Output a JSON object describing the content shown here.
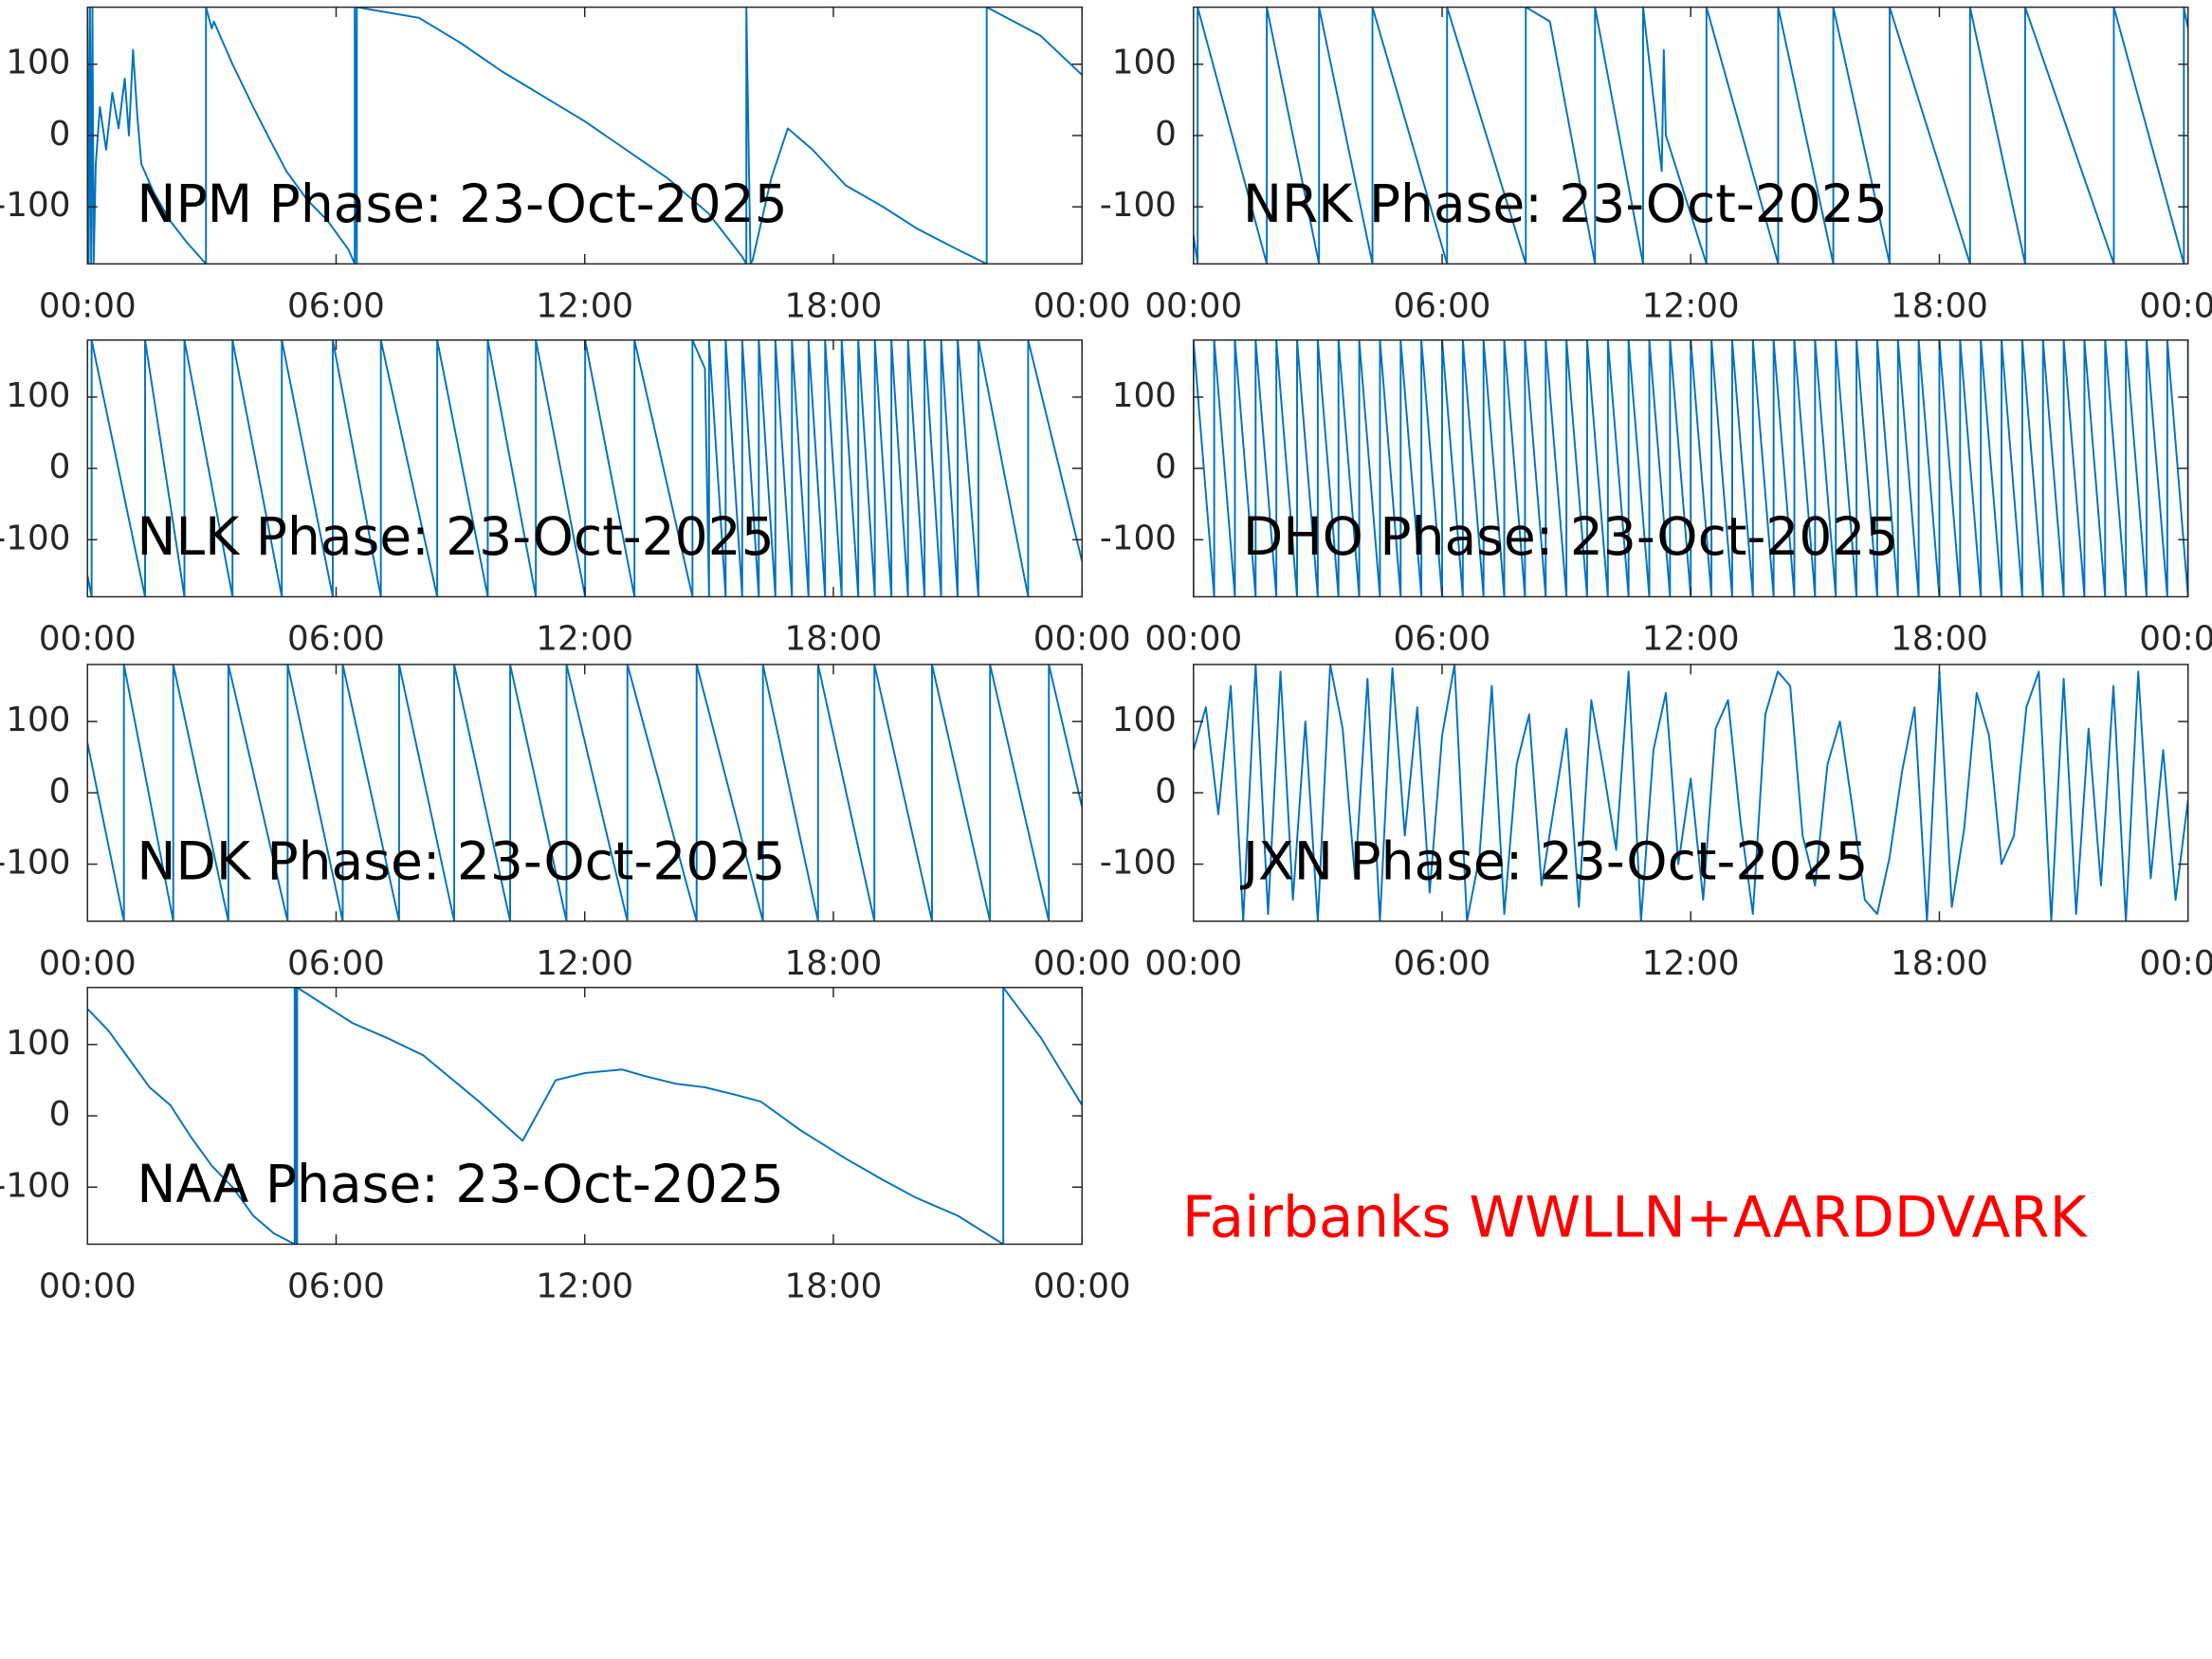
{
  "chart_data": [
    {
      "type": "line",
      "title": "NPM Phase: 23-Oct-2025",
      "color": "#0072bd",
      "x": [
        0,
        0.03,
        0.06,
        0.09,
        0.12,
        0.15,
        0.2,
        0.3,
        0.45,
        0.6,
        0.75,
        0.9,
        1.0,
        1.1,
        1.2,
        1.3,
        1.6,
        2.0,
        2.4,
        2.86,
        2.86,
        3.0,
        3.05,
        3.5,
        4.0,
        4.35,
        4.8,
        5.3,
        5.8,
        6.3,
        6.45,
        6.45,
        6.5,
        6.5,
        7.0,
        8.0,
        9.0,
        10.0,
        11.0,
        12.0,
        13.0,
        14.0,
        15.0,
        15.8,
        15.9,
        15.9,
        16.0,
        16.05,
        16.5,
        16.9,
        17.5,
        18.3,
        19.2,
        20.0,
        21.0,
        21.7,
        21.7,
        23.0,
        24
      ],
      "values": [
        180,
        -180,
        180,
        -180,
        180,
        -180,
        -40,
        40,
        -20,
        60,
        10,
        80,
        0,
        120,
        30,
        -40,
        -80,
        -120,
        -150,
        -180,
        180,
        150,
        160,
        100,
        40,
        0,
        -50,
        -90,
        -120,
        -160,
        -180,
        180,
        -180,
        180,
        175,
        165,
        130,
        90,
        55,
        20,
        -20,
        -60,
        -110,
        -170,
        -180,
        180,
        -180,
        -175,
        -60,
        10,
        -20,
        -70,
        -100,
        -130,
        -160,
        -180,
        180,
        140,
        85
      ],
      "xlim": [
        0,
        24
      ],
      "xticks": [
        {
          "value": 0,
          "label": "00:00"
        },
        {
          "value": 6,
          "label": "06:00"
        },
        {
          "value": 12,
          "label": "12:00"
        },
        {
          "value": 18,
          "label": "18:00"
        },
        {
          "value": 24,
          "label": "00:00"
        }
      ],
      "ylim": [
        -180,
        180
      ],
      "yticks": [
        -100,
        0,
        100
      ]
    },
    {
      "type": "line",
      "title": "NRK Phase: 23-Oct-2025",
      "color": "#0072bd",
      "x": [
        0,
        0.1,
        0.1,
        1.77,
        1.77,
        3.03,
        3.03,
        4.32,
        4.32,
        6.12,
        6.12,
        8.02,
        8.02,
        8.6,
        9.69,
        9.69,
        10.85,
        10.85,
        11.3,
        11.35,
        11.4,
        12.38,
        12.38,
        14.11,
        14.11,
        15.44,
        15.44,
        16.8,
        16.8,
        18.74,
        18.74,
        20.07,
        20.07,
        22.21,
        22.21,
        23.9,
        23.9,
        24
      ],
      "values": [
        -140,
        -180,
        180,
        -180,
        180,
        -180,
        180,
        -180,
        180,
        -180,
        180,
        -180,
        180,
        160,
        -180,
        180,
        -180,
        180,
        -50,
        120,
        0,
        -180,
        180,
        -180,
        180,
        -180,
        180,
        -180,
        180,
        -180,
        180,
        -180,
        180,
        -180,
        180,
        -180,
        180,
        150
      ],
      "xlim": [
        0,
        24
      ],
      "xticks": [
        {
          "value": 0,
          "label": "00:00"
        },
        {
          "value": 6,
          "label": "06:00"
        },
        {
          "value": 12,
          "label": "12:00"
        },
        {
          "value": 18,
          "label": "18:00"
        },
        {
          "value": 24,
          "label": "00:00"
        }
      ],
      "ylim": [
        -180,
        180
      ],
      "yticks": [
        -100,
        0,
        100
      ]
    },
    {
      "type": "line",
      "title": "NLK Phase: 23-Oct-2025",
      "color": "#0072bd",
      "x": [
        0,
        0.1,
        0.1,
        1.39,
        1.39,
        2.34,
        2.34,
        3.5,
        3.5,
        4.69,
        4.69,
        5.92,
        5.92,
        7.08,
        7.08,
        8.44,
        8.44,
        9.66,
        9.66,
        10.82,
        10.82,
        12.01,
        12.01,
        13.2,
        13.2,
        14.6,
        14.6,
        14.9,
        15.0,
        15.0,
        15.4,
        15.4,
        15.8,
        15.8,
        16.2,
        16.2,
        16.6,
        16.6,
        17.0,
        17.0,
        17.4,
        17.4,
        17.8,
        17.8,
        18.2,
        18.2,
        18.6,
        18.6,
        19.0,
        19.0,
        19.4,
        19.4,
        19.8,
        19.8,
        20.2,
        20.2,
        20.6,
        20.6,
        21.0,
        21.0,
        21.5,
        21.5,
        22.7,
        22.7,
        24
      ],
      "values": [
        -150,
        -180,
        180,
        -180,
        180,
        -180,
        180,
        -180,
        180,
        -180,
        180,
        -180,
        180,
        -180,
        180,
        -180,
        180,
        -180,
        180,
        -180,
        180,
        -180,
        180,
        -180,
        180,
        -180,
        180,
        140,
        -180,
        180,
        -180,
        180,
        -180,
        180,
        -180,
        180,
        -180,
        180,
        -180,
        180,
        -180,
        180,
        -180,
        180,
        -180,
        180,
        -180,
        180,
        -180,
        180,
        -180,
        180,
        -180,
        180,
        -180,
        180,
        -180,
        180,
        -180,
        180,
        -180,
        180,
        -180,
        180,
        -130
      ],
      "xlim": [
        0,
        24
      ],
      "xticks": [
        {
          "value": 0,
          "label": "00:00"
        },
        {
          "value": 6,
          "label": "06:00"
        },
        {
          "value": 12,
          "label": "12:00"
        },
        {
          "value": 18,
          "label": "18:00"
        },
        {
          "value": 24,
          "label": "00:00"
        }
      ],
      "ylim": [
        -180,
        180
      ],
      "yticks": [
        -100,
        0,
        100
      ]
    },
    {
      "type": "line",
      "title": "DHO Phase: 23-Oct-2025",
      "color": "#0072bd",
      "x": [
        0,
        0,
        0.5,
        0.5,
        1,
        1,
        1.5,
        1.5,
        2,
        2,
        2.5,
        2.5,
        3,
        3,
        3.5,
        3.5,
        4,
        4,
        4.5,
        4.5,
        5,
        5,
        5.5,
        5.5,
        6,
        6,
        6.5,
        6.5,
        7,
        7,
        7.5,
        7.5,
        8,
        8,
        8.5,
        8.5,
        9,
        9,
        9.5,
        9.5,
        10,
        10,
        10.5,
        10.5,
        11,
        11,
        11.5,
        11.5,
        12,
        12,
        12.5,
        12.5,
        13,
        13,
        13.5,
        13.5,
        14,
        14,
        14.5,
        14.5,
        15,
        15,
        15.5,
        15.5,
        16,
        16,
        16.5,
        16.5,
        17,
        17,
        17.5,
        17.5,
        18,
        18,
        18.5,
        18.5,
        19,
        19,
        19.5,
        19.5,
        20,
        20,
        20.5,
        20.5,
        21,
        21,
        21.5,
        21.5,
        22,
        22,
        22.5,
        22.5,
        23,
        23,
        23.5,
        23.5,
        24,
        24
      ],
      "values": [
        -180,
        180,
        -180,
        180,
        -180,
        180,
        -180,
        180,
        -180,
        180,
        -180,
        180,
        -180,
        180,
        -180,
        180,
        -180,
        180,
        -180,
        180,
        -180,
        180,
        -180,
        180,
        -180,
        180,
        -180,
        180,
        -180,
        180,
        -180,
        180,
        -180,
        180,
        -180,
        180,
        -180,
        180,
        -180,
        180,
        -180,
        180,
        -180,
        180,
        -180,
        180,
        -180,
        180,
        -180,
        180,
        -180,
        180,
        -180,
        180,
        -180,
        180,
        -180,
        180,
        -180,
        180,
        -180,
        180,
        -180,
        180,
        -180,
        180,
        -180,
        180,
        -180,
        180,
        -180,
        180,
        -180,
        180,
        -180,
        180,
        -180,
        180,
        -180,
        180,
        -180,
        180,
        -180,
        180,
        -180,
        180,
        -180,
        180,
        -180,
        180,
        -180,
        180,
        -180,
        180,
        -180,
        180,
        -180,
        180
      ],
      "xlim": [
        0,
        24
      ],
      "xticks": [
        {
          "value": 0,
          "label": "00:00"
        },
        {
          "value": 6,
          "label": "06:00"
        },
        {
          "value": 12,
          "label": "12:00"
        },
        {
          "value": 18,
          "label": "18:00"
        },
        {
          "value": 24,
          "label": "00:00"
        }
      ],
      "ylim": [
        -180,
        180
      ],
      "yticks": [
        -100,
        0,
        100
      ]
    },
    {
      "type": "line",
      "title": "NDK Phase: 23-Oct-2025",
      "color": "#0072bd",
      "x": [
        0,
        0.88,
        0.88,
        2.07,
        2.07,
        3.4,
        3.4,
        4.83,
        4.83,
        6.16,
        6.16,
        7.52,
        7.52,
        8.85,
        8.85,
        10.2,
        10.2,
        11.56,
        11.56,
        13.03,
        13.03,
        14.7,
        14.7,
        16.3,
        16.3,
        17.63,
        17.63,
        18.99,
        18.99,
        20.38,
        20.38,
        21.78,
        21.78,
        23.2,
        23.2,
        24
      ],
      "values": [
        70,
        -180,
        180,
        -180,
        180,
        -180,
        180,
        -180,
        180,
        -180,
        180,
        -180,
        180,
        -180,
        180,
        -180,
        180,
        -180,
        180,
        -180,
        180,
        -180,
        180,
        -180,
        180,
        -180,
        180,
        -180,
        180,
        -180,
        180,
        -180,
        180,
        -180,
        180,
        -20
      ],
      "xlim": [
        0,
        24
      ],
      "xticks": [
        {
          "value": 0,
          "label": "00:00"
        },
        {
          "value": 6,
          "label": "06:00"
        },
        {
          "value": 12,
          "label": "12:00"
        },
        {
          "value": 18,
          "label": "18:00"
        },
        {
          "value": 24,
          "label": "00:00"
        }
      ],
      "ylim": [
        -180,
        180
      ],
      "yticks": [
        -100,
        0,
        100
      ]
    },
    {
      "type": "line",
      "title": "JXN Phase: 23-Oct-2025",
      "color": "#0072bd",
      "x": [
        0,
        0.3,
        0.6,
        0.9,
        1.2,
        1.5,
        1.8,
        2.1,
        2.4,
        2.7,
        3,
        3.3,
        3.6,
        3.9,
        4.2,
        4.5,
        4.8,
        5.1,
        5.4,
        5.7,
        6,
        6.3,
        6.6,
        6.9,
        7.2,
        7.5,
        7.8,
        8.1,
        8.4,
        8.7,
        9,
        9.3,
        9.6,
        9.9,
        10.2,
        10.5,
        10.8,
        11.1,
        11.4,
        11.7,
        12,
        12.3,
        12.6,
        12.9,
        13.2,
        13.5,
        13.8,
        14.1,
        14.4,
        14.7,
        15,
        15.3,
        15.6,
        15.9,
        16.2,
        16.5,
        16.8,
        17.1,
        17.4,
        17.7,
        18,
        18.3,
        18.6,
        18.9,
        19.2,
        19.5,
        19.8,
        20.1,
        20.4,
        20.7,
        21,
        21.3,
        21.6,
        21.9,
        22.2,
        22.5,
        22.8,
        23.1,
        23.4,
        23.7,
        24
      ],
      "values": [
        60,
        120,
        -30,
        150,
        -180,
        180,
        -170,
        170,
        -150,
        100,
        -180,
        180,
        90,
        -120,
        160,
        -180,
        175,
        -60,
        120,
        -140,
        80,
        180,
        -180,
        -90,
        150,
        -170,
        40,
        110,
        -130,
        -20,
        90,
        -160,
        130,
        30,
        -80,
        170,
        -180,
        60,
        140,
        -100,
        20,
        -150,
        90,
        130,
        -40,
        -170,
        110,
        170,
        150,
        -60,
        -130,
        40,
        100,
        -20,
        -150,
        -170,
        -90,
        30,
        120,
        -180,
        170,
        -160,
        -50,
        140,
        80,
        -100,
        -60,
        120,
        170,
        -180,
        160,
        -170,
        90,
        -130,
        150,
        -180,
        170,
        -120,
        60,
        -150,
        -10
      ],
      "xlim": [
        0,
        24
      ],
      "xticks": [
        {
          "value": 0,
          "label": "00:00"
        },
        {
          "value": 6,
          "label": "06:00"
        },
        {
          "value": 12,
          "label": "12:00"
        },
        {
          "value": 18,
          "label": "18:00"
        },
        {
          "value": 24,
          "label": "00:00"
        }
      ],
      "ylim": [
        -180,
        180
      ],
      "yticks": [
        -100,
        0,
        100
      ]
    },
    {
      "type": "line",
      "title": "NAA Phase: 23-Oct-2025",
      "color": "#0072bd",
      "x": [
        0,
        0.5,
        1.0,
        1.5,
        2.0,
        2.5,
        3.0,
        3.5,
        4.0,
        4.5,
        5.0,
        5.0,
        5.03,
        5.03,
        5.06,
        5.06,
        6.4,
        7.2,
        8.1,
        9.45,
        10.5,
        11.3,
        12.0,
        12.9,
        13.5,
        14.2,
        14.9,
        15.6,
        16.25,
        17.2,
        18.3,
        19.2,
        20.0,
        21.0,
        22.1,
        22.1,
        23.0,
        24
      ],
      "values": [
        150,
        120,
        80,
        40,
        15,
        -30,
        -70,
        -100,
        -140,
        -165,
        -180,
        180,
        -180,
        180,
        -180,
        180,
        130,
        110,
        85,
        20,
        -35,
        50,
        60,
        65,
        55,
        45,
        40,
        30,
        20,
        -20,
        -60,
        -90,
        -115,
        -140,
        -180,
        180,
        110,
        15
      ],
      "xlim": [
        0,
        24
      ],
      "xticks": [
        {
          "value": 0,
          "label": "00:00"
        },
        {
          "value": 6,
          "label": "06:00"
        },
        {
          "value": 12,
          "label": "12:00"
        },
        {
          "value": 18,
          "label": "18:00"
        },
        {
          "value": 24,
          "label": "00:00"
        }
      ],
      "ylim": [
        -180,
        180
      ],
      "yticks": [
        -100,
        0,
        100
      ]
    }
  ],
  "annotation": "Fairbanks WWLLN+AARDDVARK"
}
